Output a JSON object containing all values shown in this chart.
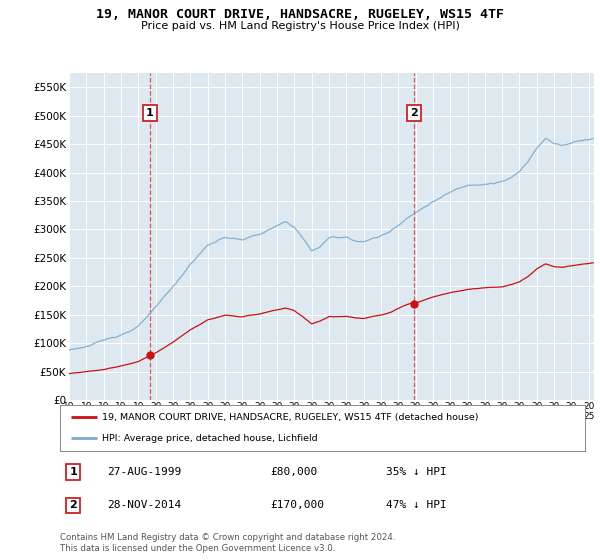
{
  "title": "19, MANOR COURT DRIVE, HANDSACRE, RUGELEY, WS15 4TF",
  "subtitle": "Price paid vs. HM Land Registry's House Price Index (HPI)",
  "legend_property": "19, MANOR COURT DRIVE, HANDSACRE, RUGELEY, WS15 4TF (detached house)",
  "legend_hpi": "HPI: Average price, detached house, Lichfield",
  "footnote": "Contains HM Land Registry data © Crown copyright and database right 2024.\nThis data is licensed under the Open Government Licence v3.0.",
  "sale1_price": 80000,
  "sale1_label": "27-AUG-1999",
  "sale1_price_label": "£80,000",
  "sale1_hpi_label": "35% ↓ HPI",
  "sale1_year": 1999.667,
  "sale2_price": 170000,
  "sale2_label": "28-NOV-2014",
  "sale2_price_label": "£170,000",
  "sale2_hpi_label": "47% ↓ HPI",
  "sale2_year": 2014.917,
  "hpi_color": "#7aabcf",
  "property_color": "#cc1111",
  "background_color": "#dde8f0",
  "ylim": [
    0,
    575000
  ],
  "yticks": [
    0,
    50000,
    100000,
    150000,
    200000,
    250000,
    300000,
    350000,
    400000,
    450000,
    500000,
    550000
  ],
  "xlim_start": 1995.0,
  "xlim_end": 2025.3
}
